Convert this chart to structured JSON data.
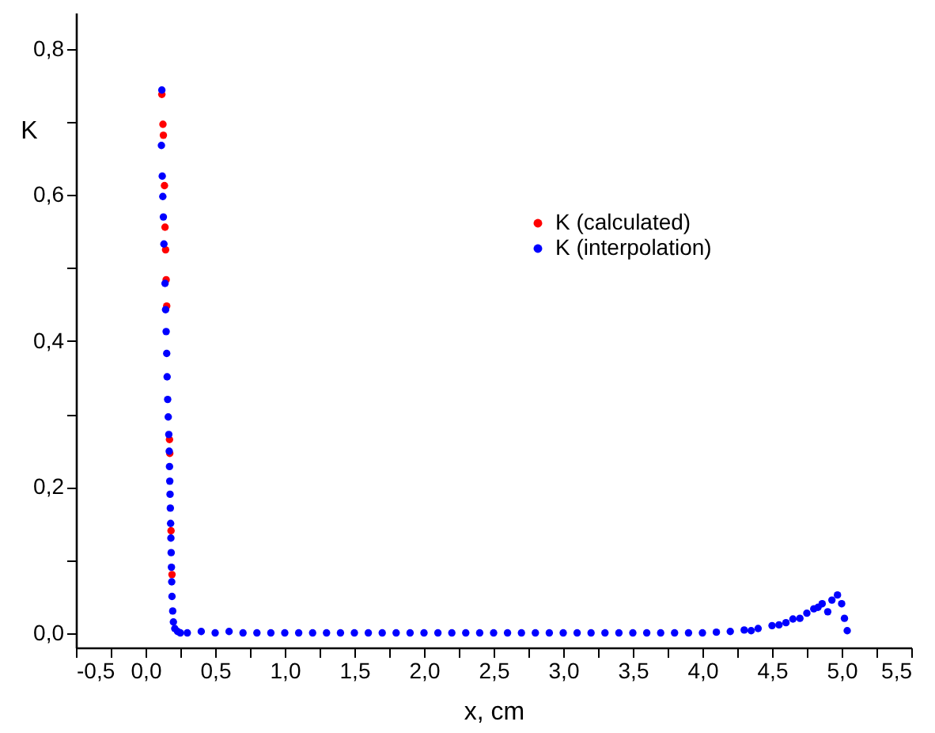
{
  "chart_data": {
    "type": "scatter",
    "xlabel": "x, cm",
    "ylabel": "K",
    "xlim": [
      -0.5,
      5.5
    ],
    "ylim": [
      -0.02,
      0.85
    ],
    "xticks": [
      {
        "value": -0.5,
        "label": "-0,5"
      },
      {
        "value": -0.25,
        "label": null
      },
      {
        "value": 0,
        "label": "0,0"
      },
      {
        "value": 0.25,
        "label": null
      },
      {
        "value": 0.5,
        "label": "0,5"
      },
      {
        "value": 0.75,
        "label": null
      },
      {
        "value": 1,
        "label": "1,0"
      },
      {
        "value": 1.25,
        "label": null
      },
      {
        "value": 1.5,
        "label": "1,5"
      },
      {
        "value": 1.75,
        "label": null
      },
      {
        "value": 2,
        "label": "2,0"
      },
      {
        "value": 2.25,
        "label": null
      },
      {
        "value": 2.5,
        "label": "2,5"
      },
      {
        "value": 2.75,
        "label": null
      },
      {
        "value": 3,
        "label": "3,0"
      },
      {
        "value": 3.25,
        "label": null
      },
      {
        "value": 3.5,
        "label": "3,5"
      },
      {
        "value": 3.75,
        "label": null
      },
      {
        "value": 4,
        "label": "4,0"
      },
      {
        "value": 4.25,
        "label": null
      },
      {
        "value": 4.5,
        "label": "4,5"
      },
      {
        "value": 4.75,
        "label": null
      },
      {
        "value": 5,
        "label": "5,0"
      },
      {
        "value": 5.25,
        "label": null
      },
      {
        "value": 5.5,
        "label": "5,5"
      }
    ],
    "yticks": [
      {
        "value": 0,
        "label": "0,0"
      },
      {
        "value": 0.1,
        "label": null
      },
      {
        "value": 0.2,
        "label": "0,2"
      },
      {
        "value": 0.3,
        "label": null
      },
      {
        "value": 0.4,
        "label": "0,4"
      },
      {
        "value": 0.5,
        "label": null
      },
      {
        "value": 0.6,
        "label": "0,6"
      },
      {
        "value": 0.7,
        "label": null
      },
      {
        "value": 0.8,
        "label": "0,8"
      }
    ],
    "grid": false,
    "legend": "top right",
    "marker": "circle",
    "series": [
      {
        "name": "K (calculated)",
        "color": "#ff0000",
        "x": [
          0.117,
          0.125,
          0.128,
          0.136,
          0.14,
          0.144,
          0.148,
          0.152,
          0.172,
          0.174,
          0.183,
          0.19
        ],
        "values": [
          0.738,
          0.697,
          0.682,
          0.613,
          0.556,
          0.525,
          0.484,
          0.448,
          0.265,
          0.246,
          0.14,
          0.08
        ]
      },
      {
        "name": "K (interpolation)",
        "color": "#0000ff",
        "x": [
          0.117,
          0.114,
          0.12,
          0.124,
          0.128,
          0.132,
          0.14,
          0.144,
          0.148,
          0.152,
          0.155,
          0.159,
          0.163,
          0.167,
          0.17,
          0.172,
          0.174,
          0.176,
          0.178,
          0.18,
          0.182,
          0.184,
          0.186,
          0.188,
          0.19,
          0.195,
          0.2,
          0.21,
          0.23,
          0.25,
          0.3,
          0.4,
          0.5,
          0.6,
          0.7,
          0.8,
          0.9,
          1.0,
          1.1,
          1.2,
          1.3,
          1.4,
          1.5,
          1.6,
          1.7,
          1.8,
          1.9,
          2.0,
          2.1,
          2.2,
          2.3,
          2.4,
          2.5,
          2.6,
          2.7,
          2.8,
          2.9,
          3.0,
          3.1,
          3.2,
          3.3,
          3.4,
          3.5,
          3.6,
          3.7,
          3.8,
          3.9,
          4.0,
          4.1,
          4.2,
          4.3,
          4.35,
          4.4,
          4.5,
          4.55,
          4.6,
          4.65,
          4.7,
          4.75,
          4.8,
          4.83,
          4.86,
          4.9,
          4.93,
          4.97,
          5.0,
          5.02,
          5.04
        ],
        "values": [
          0.744,
          0.668,
          0.626,
          0.598,
          0.57,
          0.533,
          0.479,
          0.443,
          0.413,
          0.383,
          0.351,
          0.32,
          0.296,
          0.272,
          0.249,
          0.228,
          0.208,
          0.19,
          0.171,
          0.15,
          0.13,
          0.11,
          0.09,
          0.07,
          0.05,
          0.03,
          0.015,
          0.006,
          0.002,
          0,
          0,
          0.002,
          0,
          0.002,
          0,
          0,
          0,
          0,
          0,
          0,
          0,
          0,
          0,
          0,
          0,
          0,
          0,
          0,
          0,
          0,
          0,
          0,
          0,
          0,
          0,
          0,
          0,
          0,
          0,
          0,
          0,
          0,
          0,
          0,
          0,
          0,
          0,
          0,
          0.001,
          0.002,
          0.004,
          0.003,
          0.006,
          0.01,
          0.011,
          0.014,
          0.019,
          0.02,
          0.027,
          0.033,
          0.035,
          0.04,
          0.029,
          0.045,
          0.052,
          0.04,
          0.02,
          0.003
        ]
      }
    ]
  }
}
